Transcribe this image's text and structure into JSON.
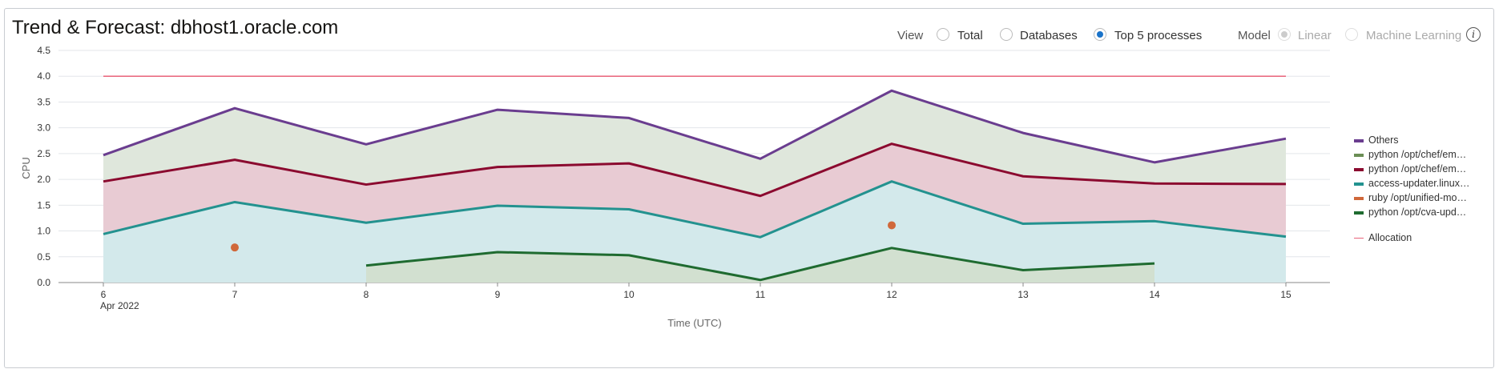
{
  "title": "Trend & Forecast: dbhost1.oracle.com",
  "view": {
    "label": "View",
    "options": [
      {
        "label": "Total",
        "selected": false
      },
      {
        "label": "Databases",
        "selected": false
      },
      {
        "label": "Top 5 processes",
        "selected": true
      }
    ]
  },
  "model": {
    "label": "Model",
    "options": [
      {
        "label": "Linear",
        "selected": true,
        "disabled": true
      },
      {
        "label": "Machine Learning",
        "selected": false,
        "disabled": true
      }
    ],
    "info_icon": "info-icon"
  },
  "chart_data": {
    "type": "area",
    "stacked": true,
    "xlabel": "Time (UTC)",
    "ylabel": "CPU",
    "ylim": [
      0,
      4.5
    ],
    "yticks": [
      "0.0",
      "0.5",
      "1.0",
      "1.5",
      "2.0",
      "2.5",
      "3.0",
      "3.5",
      "4.0",
      "4.5"
    ],
    "x": [
      "6",
      "7",
      "8",
      "9",
      "10",
      "11",
      "12",
      "13",
      "14",
      "15"
    ],
    "x_sublabel": "Apr 2022",
    "grid": true,
    "legend_position": "right",
    "series": [
      {
        "name": "Others",
        "color": "#6a3d8f",
        "fill": "#dfe7dc",
        "values": [
          2.47,
          3.38,
          2.68,
          3.35,
          3.19,
          2.4,
          3.72,
          2.9,
          2.33,
          2.79
        ]
      },
      {
        "name": "python /opt/chef/em…",
        "color": "#6b8e55",
        "fill": null,
        "values": null
      },
      {
        "name": "python /opt/chef/em…",
        "color": "#8b0a2f",
        "fill": "#e8cbd3",
        "values": [
          1.96,
          2.38,
          1.9,
          2.24,
          2.31,
          1.68,
          2.69,
          2.06,
          1.92,
          1.91
        ]
      },
      {
        "name": "access-updater.linux…",
        "color": "#23928f",
        "fill": "#d3e9eb",
        "values": [
          0.94,
          1.56,
          1.16,
          1.49,
          1.42,
          0.88,
          1.96,
          1.14,
          1.19,
          0.89
        ]
      },
      {
        "name": "ruby /opt/unified-mo…",
        "color": "#d0683a",
        "marker": "dot",
        "values": [
          null,
          0.68,
          null,
          null,
          null,
          null,
          1.11,
          null,
          null,
          null
        ]
      },
      {
        "name": "python /opt/cva-upd…",
        "color": "#1f6b30",
        "fill": "#d2e0d0",
        "values": [
          null,
          null,
          0.33,
          0.59,
          0.53,
          0.05,
          0.67,
          0.24,
          0.37,
          null
        ]
      }
    ],
    "allocation": {
      "name": "Allocation",
      "color": "#e8637a",
      "value": 4.0
    }
  }
}
